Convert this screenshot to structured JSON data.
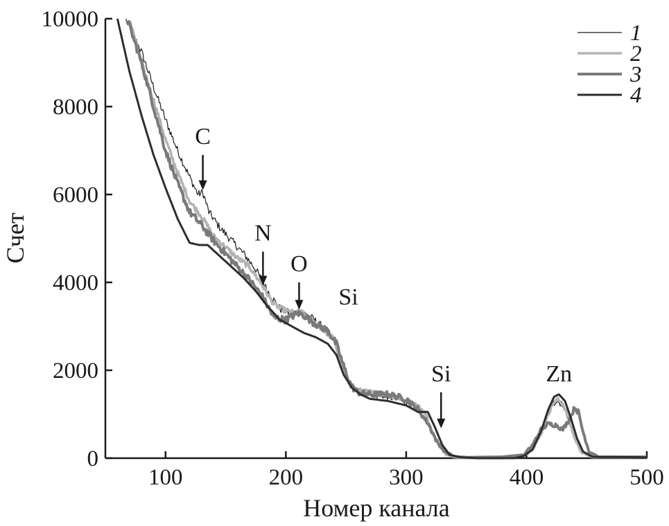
{
  "chart_data": {
    "type": "line",
    "title": "",
    "xlabel": "Номер канала",
    "ylabel": "Счет",
    "xlim": [
      50,
      500
    ],
    "ylim": [
      0,
      10000
    ],
    "xticks": [
      100,
      200,
      300,
      400,
      500
    ],
    "yticks": [
      0,
      2000,
      4000,
      6000,
      8000,
      10000
    ],
    "ytick_labels": [
      "0",
      "2000",
      "4000",
      "6000",
      "8000",
      "10000"
    ],
    "xtick_labels": [
      "100",
      "200",
      "300",
      "400",
      "500"
    ],
    "grid": false,
    "legend_position": "top-right",
    "series": [
      {
        "name": "1",
        "color": "#1a1a1a",
        "width": 1.2,
        "noise": 90,
        "points": [
          [
            67,
            10000
          ],
          [
            80,
            9250
          ],
          [
            90,
            8450
          ],
          [
            100,
            7700
          ],
          [
            110,
            7000
          ],
          [
            120,
            6400
          ],
          [
            127,
            6000
          ],
          [
            131,
            6050
          ],
          [
            136,
            5600
          ],
          [
            145,
            5250
          ],
          [
            155,
            4950
          ],
          [
            165,
            4650
          ],
          [
            175,
            4300
          ],
          [
            185,
            3800
          ],
          [
            195,
            3400
          ],
          [
            205,
            3280
          ],
          [
            212,
            3350
          ],
          [
            222,
            3180
          ],
          [
            232,
            2950
          ],
          [
            240,
            2700
          ],
          [
            246,
            2150
          ],
          [
            252,
            1750
          ],
          [
            258,
            1550
          ],
          [
            270,
            1480
          ],
          [
            285,
            1400
          ],
          [
            300,
            1280
          ],
          [
            310,
            1150
          ],
          [
            316,
            1000
          ],
          [
            321,
            650
          ],
          [
            327,
            300
          ],
          [
            333,
            90
          ],
          [
            340,
            20
          ],
          [
            350,
            0
          ],
          [
            380,
            0
          ],
          [
            398,
            60
          ],
          [
            405,
            200
          ],
          [
            412,
            550
          ],
          [
            418,
            1000
          ],
          [
            422,
            1250
          ],
          [
            426,
            1300
          ],
          [
            430,
            1220
          ],
          [
            435,
            900
          ],
          [
            440,
            450
          ],
          [
            446,
            120
          ],
          [
            455,
            20
          ],
          [
            500,
            20
          ]
        ]
      },
      {
        "name": "2",
        "color": "#b3b3b3",
        "width": 3.5,
        "noise": 60,
        "points": [
          [
            70,
            10000
          ],
          [
            80,
            9000
          ],
          [
            90,
            8150
          ],
          [
            100,
            7250
          ],
          [
            110,
            6500
          ],
          [
            120,
            5850
          ],
          [
            130,
            5500
          ],
          [
            140,
            5050
          ],
          [
            150,
            4800
          ],
          [
            160,
            4550
          ],
          [
            170,
            4350
          ],
          [
            180,
            3950
          ],
          [
            190,
            3500
          ],
          [
            200,
            3350
          ],
          [
            208,
            3300
          ],
          [
            212,
            3350
          ],
          [
            220,
            3150
          ],
          [
            230,
            2950
          ],
          [
            240,
            2700
          ],
          [
            246,
            2150
          ],
          [
            252,
            1750
          ],
          [
            258,
            1550
          ],
          [
            270,
            1500
          ],
          [
            285,
            1450
          ],
          [
            300,
            1320
          ],
          [
            310,
            1180
          ],
          [
            316,
            1020
          ],
          [
            321,
            650
          ],
          [
            327,
            300
          ],
          [
            333,
            90
          ],
          [
            340,
            20
          ],
          [
            350,
            0
          ],
          [
            380,
            0
          ],
          [
            398,
            60
          ],
          [
            405,
            200
          ],
          [
            412,
            550
          ],
          [
            418,
            1000
          ],
          [
            422,
            1250
          ],
          [
            426,
            1330
          ],
          [
            430,
            1250
          ],
          [
            435,
            900
          ],
          [
            440,
            450
          ],
          [
            446,
            120
          ],
          [
            455,
            20
          ],
          [
            500,
            20
          ]
        ]
      },
      {
        "name": "3",
        "color": "#7a7a7a",
        "width": 4,
        "noise": 80,
        "points": [
          [
            68,
            10000
          ],
          [
            80,
            9000
          ],
          [
            90,
            8000
          ],
          [
            100,
            7000
          ],
          [
            110,
            6250
          ],
          [
            120,
            5600
          ],
          [
            130,
            5300
          ],
          [
            140,
            4950
          ],
          [
            150,
            4650
          ],
          [
            160,
            4350
          ],
          [
            170,
            4050
          ],
          [
            180,
            3700
          ],
          [
            190,
            3200
          ],
          [
            200,
            3150
          ],
          [
            210,
            3300
          ],
          [
            215,
            3250
          ],
          [
            225,
            3050
          ],
          [
            235,
            2900
          ],
          [
            242,
            2600
          ],
          [
            248,
            2100
          ],
          [
            254,
            1650
          ],
          [
            260,
            1500
          ],
          [
            270,
            1450
          ],
          [
            285,
            1450
          ],
          [
            300,
            1350
          ],
          [
            310,
            1100
          ],
          [
            318,
            800
          ],
          [
            325,
            400
          ],
          [
            332,
            150
          ],
          [
            340,
            40
          ],
          [
            350,
            20
          ],
          [
            380,
            30
          ],
          [
            398,
            80
          ],
          [
            405,
            300
          ],
          [
            412,
            650
          ],
          [
            418,
            780
          ],
          [
            425,
            750
          ],
          [
            430,
            650
          ],
          [
            436,
            900
          ],
          [
            440,
            1150
          ],
          [
            443,
            1050
          ],
          [
            447,
            600
          ],
          [
            452,
            150
          ],
          [
            460,
            30
          ],
          [
            500,
            30
          ]
        ]
      },
      {
        "name": "4",
        "color": "#2d2d2d",
        "width": 3,
        "noise": 0,
        "points": [
          [
            60,
            10000
          ],
          [
            70,
            8800
          ],
          [
            80,
            7800
          ],
          [
            90,
            6900
          ],
          [
            100,
            6150
          ],
          [
            110,
            5450
          ],
          [
            120,
            4900
          ],
          [
            128,
            4850
          ],
          [
            135,
            4850
          ],
          [
            145,
            4600
          ],
          [
            155,
            4350
          ],
          [
            165,
            4100
          ],
          [
            175,
            3800
          ],
          [
            185,
            3450
          ],
          [
            195,
            3150
          ],
          [
            205,
            3000
          ],
          [
            215,
            2850
          ],
          [
            225,
            2750
          ],
          [
            235,
            2600
          ],
          [
            242,
            2350
          ],
          [
            248,
            1900
          ],
          [
            255,
            1600
          ],
          [
            262,
            1450
          ],
          [
            270,
            1350
          ],
          [
            285,
            1300
          ],
          [
            300,
            1200
          ],
          [
            310,
            1050
          ],
          [
            318,
            1050
          ],
          [
            324,
            700
          ],
          [
            330,
            300
          ],
          [
            336,
            80
          ],
          [
            345,
            20
          ],
          [
            360,
            0
          ],
          [
            390,
            0
          ],
          [
            398,
            50
          ],
          [
            405,
            200
          ],
          [
            412,
            600
          ],
          [
            418,
            1100
          ],
          [
            423,
            1400
          ],
          [
            427,
            1450
          ],
          [
            432,
            1300
          ],
          [
            437,
            900
          ],
          [
            442,
            450
          ],
          [
            447,
            150
          ],
          [
            455,
            30
          ],
          [
            500,
            20
          ]
        ]
      }
    ],
    "annotations": [
      {
        "text": "C",
        "x": 131,
        "y": 7150,
        "arrow": [
          131,
          6900,
          131,
          6100
        ]
      },
      {
        "text": "N",
        "x": 181,
        "y": 4950,
        "arrow": [
          181,
          4700,
          181,
          3930
        ]
      },
      {
        "text": "O",
        "x": 211,
        "y": 4250,
        "arrow": [
          211,
          4000,
          211,
          3380
        ]
      },
      {
        "text": "Si",
        "x": 252,
        "y": 3500,
        "arrow": null
      },
      {
        "text": "Si",
        "x": 329,
        "y": 1750,
        "arrow": [
          329,
          1500,
          329,
          680
        ]
      },
      {
        "text": "Zn",
        "x": 427,
        "y": 1750,
        "arrow": null
      }
    ]
  }
}
